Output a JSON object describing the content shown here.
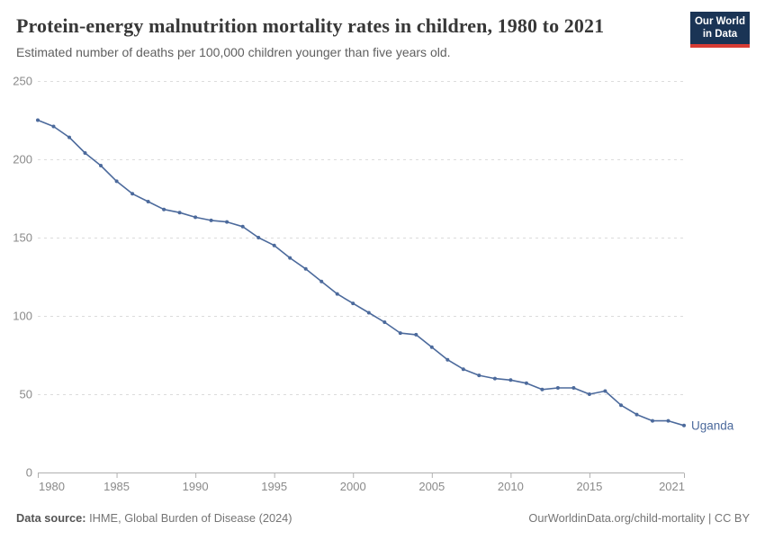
{
  "header": {
    "title": "Protein-energy malnutrition mortality rates in children, 1980 to 2021",
    "subtitle": "Estimated number of deaths per 100,000 children younger than five years old.",
    "logo": {
      "line1": "Our World",
      "line2": "in Data"
    }
  },
  "chart_data": {
    "type": "line",
    "title": "Protein-energy malnutrition mortality rates in children, 1980 to 2021",
    "subtitle": "Estimated number of deaths per 100,000 children younger than five years old.",
    "x": [
      1980,
      1981,
      1982,
      1983,
      1984,
      1985,
      1986,
      1987,
      1988,
      1989,
      1990,
      1991,
      1992,
      1993,
      1994,
      1995,
      1996,
      1997,
      1998,
      1999,
      2000,
      2001,
      2002,
      2003,
      2004,
      2005,
      2006,
      2007,
      2008,
      2009,
      2010,
      2011,
      2012,
      2013,
      2014,
      2015,
      2016,
      2017,
      2018,
      2019,
      2020,
      2021
    ],
    "series": [
      {
        "name": "Uganda",
        "values": [
          225,
          221,
          214,
          204,
          196,
          186,
          178,
          173,
          168,
          166,
          163,
          161,
          160,
          157,
          150,
          145,
          137,
          130,
          122,
          114,
          108,
          102,
          96,
          89,
          88,
          80,
          72,
          66,
          62,
          60,
          59,
          57,
          53,
          54,
          54,
          50,
          52,
          43,
          37,
          33,
          33,
          30
        ]
      }
    ],
    "xlabel": "",
    "ylabel": "",
    "ylim": [
      0,
      250
    ],
    "yticks": [
      0,
      50,
      100,
      150,
      200,
      250
    ],
    "xticks": [
      1980,
      1985,
      1990,
      1995,
      2000,
      2005,
      2010,
      2015,
      2021
    ],
    "grid": "horizontal-dashed",
    "legend_position": "line-end-label"
  },
  "footer": {
    "source_label": "Data source:",
    "source_value": " IHME, Global Burden of Disease (2024)",
    "credit": "OurWorldinData.org/child-mortality | CC BY"
  },
  "colors": {
    "line": "#4C6A9C",
    "entity_label": "#4C6A9C",
    "grid": "#dcdcdc",
    "axis": "#b0b0b0",
    "tick_text": "#8a8a8a",
    "logo_bg": "#1a3455",
    "logo_accent": "#d73c34"
  }
}
